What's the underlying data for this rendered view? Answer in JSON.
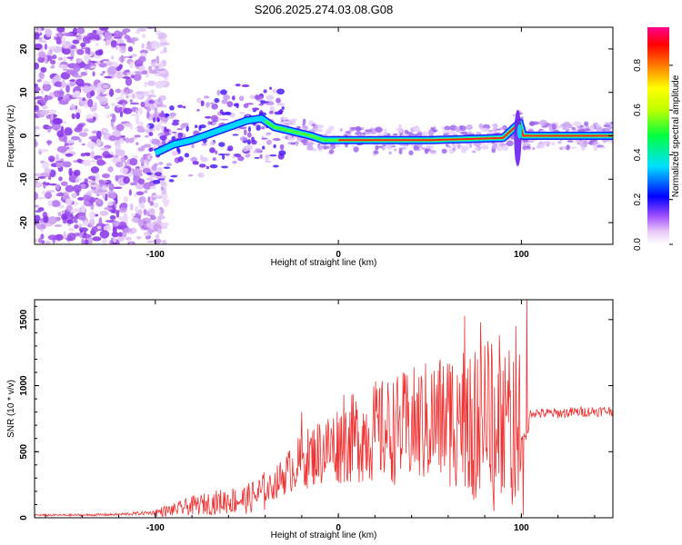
{
  "title": "S206.2025.274.03.08.G08",
  "chart_data": [
    {
      "type": "heatmap",
      "xlabel": "Height of straight line (km)",
      "ylabel": "Frequency (Hz)",
      "xlim": [
        -166,
        150
      ],
      "ylim": [
        -25,
        25
      ],
      "xticks": [
        -100,
        0,
        100
      ],
      "yticks": [
        -20,
        -10,
        0,
        10,
        20
      ],
      "colorbar": {
        "label": "Normalized spectral amplitude",
        "range": [
          0,
          0.97
        ],
        "ticks": [
          "0.0",
          "0.2",
          "0.4",
          "0.6",
          "0.8"
        ]
      },
      "features": [
        {
          "name": "noise",
          "x_range": [
            -166,
            -100
          ],
          "y_range": [
            -25,
            25
          ]
        },
        {
          "name": "ridge",
          "points": [
            [
              -100,
              -4
            ],
            [
              -90,
              -2
            ],
            [
              -80,
              -1
            ],
            [
              -70,
              0.5
            ],
            [
              -60,
              2
            ],
            [
              -50,
              3.5
            ],
            [
              -42,
              4
            ],
            [
              -35,
              2
            ],
            [
              -25,
              1
            ],
            [
              -15,
              0
            ],
            [
              -8,
              -1
            ],
            [
              0,
              -1
            ],
            [
              50,
              -1
            ],
            [
              90,
              -0.5
            ],
            [
              99,
              3
            ],
            [
              101,
              0
            ],
            [
              150,
              0
            ]
          ]
        },
        {
          "name": "spike",
          "x": 98,
          "y_range": [
            -7,
            6
          ]
        }
      ]
    },
    {
      "type": "line",
      "xlabel": "Height of straight line (km)",
      "ylabel": "SNR (10 * v/v)",
      "xlim": [
        -166,
        150
      ],
      "ylim": [
        0,
        1650
      ],
      "xticks": [
        -100,
        0,
        100
      ],
      "yticks": [
        0,
        500,
        1000,
        1500
      ],
      "color": "#ee3333",
      "envelope": {
        "x": [
          -166,
          -140,
          -120,
          -100,
          -90,
          -80,
          -70,
          -60,
          -50,
          -40,
          -35,
          -30,
          -20,
          -10,
          0,
          10,
          20,
          30,
          40,
          50,
          60,
          70,
          80,
          90,
          95,
          100,
          103,
          105,
          110,
          120,
          130,
          150
        ],
        "y": [
          20,
          20,
          25,
          40,
          60,
          90,
          110,
          130,
          140,
          200,
          250,
          320,
          430,
          500,
          560,
          610,
          650,
          660,
          690,
          720,
          760,
          780,
          790,
          750,
          700,
          620,
          600,
          800,
          790,
          790,
          800,
          810
        ]
      },
      "peaks": [
        {
          "x": 103,
          "y": 1650
        },
        {
          "x": 101,
          "y": 1470
        },
        {
          "x": 97,
          "y": 1450
        },
        {
          "x": 88,
          "y": 1380
        },
        {
          "x": 84,
          "y": 1200
        },
        {
          "x": 75,
          "y": 1160
        },
        {
          "x": 65,
          "y": 1080
        },
        {
          "x": 3,
          "y": 930
        },
        {
          "x": -20,
          "y": 800
        }
      ],
      "dips": [
        {
          "x": 85,
          "y": 50
        },
        {
          "x": 101,
          "y": 20
        },
        {
          "x": 95,
          "y": 100
        },
        {
          "x": 75,
          "y": 150
        }
      ]
    }
  ]
}
